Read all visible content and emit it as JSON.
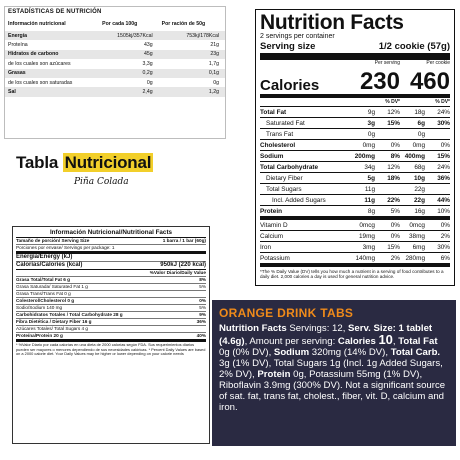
{
  "panel_a": {
    "title": "ESTADÍSTICAS DE NUTRICIÓN",
    "headers": [
      "Información nutricional",
      "Por cada 100g",
      "Por ración de 50g"
    ],
    "rows": [
      {
        "label": "Energía",
        "v1": "1505kj/357Kcal",
        "v2": "753kj/178Kcal",
        "bold": true
      },
      {
        "label": "Proteína",
        "v1": "43g",
        "v2": "21g",
        "bold": false
      },
      {
        "label": "Hidratos de carbono",
        "v1": "45g",
        "v2": "23g",
        "bold": true
      },
      {
        "label": "de los cuales son azúcares",
        "v1": "3,3g",
        "v2": "1,7g",
        "bold": false
      },
      {
        "label": "Grasas",
        "v1": "0,2g",
        "v2": "0,1g",
        "bold": true
      },
      {
        "label": "de los cuales son saturadas",
        "v1": "0g",
        "v2": "0g",
        "bold": false
      },
      {
        "label": "Sal",
        "v1": "2,4g",
        "v2": "1,2g",
        "bold": true
      }
    ]
  },
  "panel_b": {
    "title": "Nutrition Facts",
    "servings": "2 servings per container",
    "serving_size_label": "Serving size",
    "serving_size_value": "1/2 cookie (57g)",
    "calories_label": "Calories",
    "col1_header": "Per serving",
    "col2_header": "Per cookie",
    "cal1": "230",
    "cal2": "460",
    "dv_header": "% DV*",
    "rows": [
      {
        "label": "Total Fat",
        "a": "9g",
        "b": "12%",
        "c": "18g",
        "d": "24%",
        "style": "b"
      },
      {
        "label": "Saturated Fat",
        "a": "3g",
        "b": "15%",
        "c": "6g",
        "d": "30%",
        "style": "i1 bold-vals"
      },
      {
        "label": "Trans Fat",
        "a": "0g",
        "b": "",
        "c": "0g",
        "d": "",
        "style": "i1"
      },
      {
        "label": "Cholesterol",
        "a": "0mg",
        "b": "0%",
        "c": "0mg",
        "d": "0%",
        "style": "b"
      },
      {
        "label": "Sodium",
        "a": "200mg",
        "b": "8%",
        "c": "400mg",
        "d": "15%",
        "style": "b bold-vals"
      },
      {
        "label": "Total Carbohydrate",
        "a": "34g",
        "b": "12%",
        "c": "68g",
        "d": "24%",
        "style": "b"
      },
      {
        "label": "Dietary Fiber",
        "a": "5g",
        "b": "18%",
        "c": "10g",
        "d": "36%",
        "style": "i1 bold-vals"
      },
      {
        "label": "Total Sugars",
        "a": "11g",
        "b": "",
        "c": "22g",
        "d": "",
        "style": "i1"
      },
      {
        "label": "Incl. Added Sugars",
        "a": "11g",
        "b": "22%",
        "c": "22g",
        "d": "44%",
        "style": "i2 bold-vals"
      },
      {
        "label": "Protein",
        "a": "8g",
        "b": "5%",
        "c": "16g",
        "d": "10%",
        "style": "b thick"
      },
      {
        "label": "Vitamin D",
        "a": "0mcg",
        "b": "0%",
        "c": "0mcg",
        "d": "0%",
        "style": ""
      },
      {
        "label": "Calcium",
        "a": "19mg",
        "b": "0%",
        "c": "38mg",
        "d": "2%",
        "style": ""
      },
      {
        "label": "Iron",
        "a": "3mg",
        "b": "15%",
        "c": "6mg",
        "d": "30%",
        "style": ""
      },
      {
        "label": "Potassium",
        "a": "140mg",
        "b": "2%",
        "c": "280mg",
        "d": "6%",
        "style": "thick"
      }
    ],
    "footnote": "*The % Daily Value (DV) tells you how much a nutrient in a serving of food contributes to a daily diet. 2,000 calories a day is used for general nutrition advice."
  },
  "panel_c": {
    "title_plain": "Tabla ",
    "title_highlight": "Nutricional",
    "subtitle": "Piña Colada"
  },
  "panel_d": {
    "title": "Información Nutricional/Nutritional Facts",
    "serving_size": "Tamaño de porción/ Serving Size",
    "serving_size_value": "1 barra / 1 bar (60g)",
    "servings": "Porciones por envase/ Servings per package: 1",
    "energy_label": "Energía/Energy (kJ)",
    "energy_value": "",
    "calories_label": "Calorías/Calories (kcal)",
    "calories_value": "950kJ (220 kcal)",
    "dv_header": "%Valor Diario/Daily Value",
    "rows": [
      {
        "label": "Grasa Total/Total Fat 6 g",
        "v": "8%",
        "style": "b"
      },
      {
        "label": "Grasa Saturada/ Saturated Fat 1 g",
        "v": "5%",
        "style": ""
      },
      {
        "label": "Grasa Trans/Trans Fat 0 g",
        "v": "",
        "style": ""
      },
      {
        "label": "Colesterol/Cholesterol 0 g",
        "v": "0%",
        "style": "b"
      },
      {
        "label": "Sodio/Sodium 140 mg",
        "v": "5%",
        "style": ""
      },
      {
        "label": "Carbohidratos Totales / Total Carbohydrate 28 g",
        "v": "9%",
        "style": "b"
      },
      {
        "label": "Fibra Dietética / Dietary Fiber 16 g",
        "v": "36%",
        "style": "b"
      },
      {
        "label": "Azúcares Totales/ Total Sugars 4 g",
        "v": "",
        "style": ""
      },
      {
        "label": "Proteína/Protein  20 g",
        "v": "40%",
        "style": "b thick"
      }
    ],
    "footnote": "* %Valor Diario por cada calorías en una dieta de 2000 calorías según FDA. Sus requerimientos diarios pueden ser mayores o menores dependiendo de sus necesidades calóricas. * Percent Daily Values are based on a 2000 calorie diet. Your Daily Values may be higher or lower depending on your calorie needs"
  },
  "panel_e": {
    "title": "ORANGE DRINK TABS",
    "line": [
      {
        "t": "Nutrition Facts",
        "b": true
      },
      {
        "t": " Servings: 12, ",
        "b": false
      },
      {
        "t": "Serv. Size: 1 tablet (4.6g)",
        "b": true
      },
      {
        "t": ", Amount per serving: ",
        "b": false
      },
      {
        "t": "Calories ",
        "b": true
      },
      {
        "t": "10",
        "b": true,
        "big": true
      },
      {
        "t": ", ",
        "b": false
      },
      {
        "t": "Total Fat",
        "b": true
      },
      {
        "t": " 0g (0% DV), ",
        "b": false
      },
      {
        "t": "Sodium",
        "b": true
      },
      {
        "t": " 320mg (14% DV), ",
        "b": false
      },
      {
        "t": "Total Carb.",
        "b": true
      },
      {
        "t": " 3g (1% DV), Total Sugars 1g (Incl. 1g Added Sugars, 2% DV), ",
        "b": false
      },
      {
        "t": "Protein",
        "b": true
      },
      {
        "t": " 0g, Potassium 55mg (1% DV), Riboflavin 3.9mg (300% DV). Not a significant source of sat. fat, trans fat, cholest., fiber, vit. D, calcium and iron.",
        "b": false
      }
    ]
  }
}
